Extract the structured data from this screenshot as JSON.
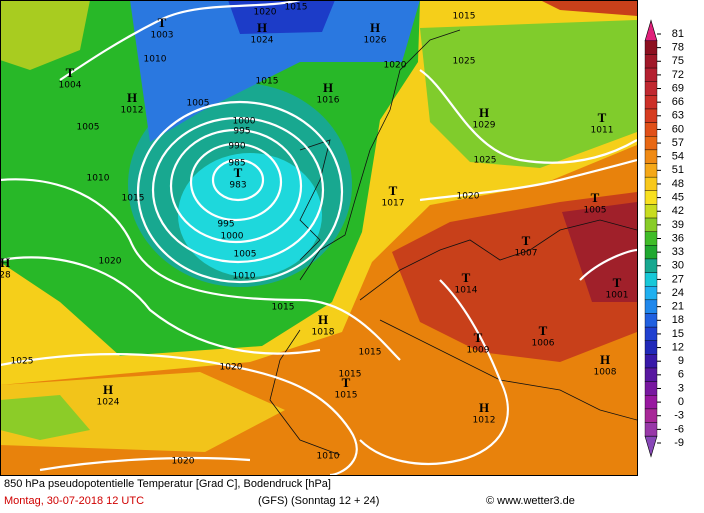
{
  "pressure_centers": [
    {
      "symbol": "T",
      "value": 1003
    },
    {
      "symbol": "H",
      "value": 1024
    },
    {
      "symbol": "H",
      "value": 1026
    },
    {
      "symbol": "T",
      "value": 1004
    },
    {
      "symbol": "H",
      "value": 1012
    },
    {
      "symbol": "H",
      "value": 1016
    },
    {
      "symbol": "H",
      "value": 1029
    },
    {
      "symbol": "T",
      "value": 1011
    },
    {
      "symbol": "T",
      "value": 983
    },
    {
      "symbol": "T",
      "value": 1017
    },
    {
      "symbol": "T",
      "value": 1005
    },
    {
      "symbol": "T",
      "value": 1007
    },
    {
      "symbol": "T",
      "value": 1014
    },
    {
      "symbol": "T",
      "value": 1001
    },
    {
      "symbol": "H",
      "value": 1018
    },
    {
      "symbol": "T",
      "value": 1009
    },
    {
      "symbol": "T",
      "value": 1006
    },
    {
      "symbol": "H",
      "value": 1008
    },
    {
      "symbol": "T",
      "value": 1015
    },
    {
      "symbol": "H",
      "value": 1024
    },
    {
      "symbol": "H",
      "value": 1012
    },
    {
      "symbol": "H",
      "value": 28
    }
  ],
  "isobar_labels": [
    1020,
    1015,
    1015,
    1010,
    1020,
    1025,
    1015,
    1005,
    1000,
    995,
    990,
    985,
    1005,
    1010,
    1015,
    1025,
    1020,
    995,
    1000,
    1005,
    1010,
    1020,
    1015,
    1015,
    1015,
    1025,
    1020,
    1020,
    1010
  ],
  "legend": {
    "ticks": [
      81,
      78,
      75,
      72,
      69,
      66,
      63,
      60,
      57,
      54,
      51,
      48,
      45,
      42,
      39,
      36,
      33,
      30,
      27,
      24,
      21,
      18,
      15,
      12,
      9,
      6,
      3,
      0,
      -3,
      -6,
      -9
    ],
    "colors": [
      "#e0207a",
      "#8c1020",
      "#a01828",
      "#b42030",
      "#c02830",
      "#cc3028",
      "#d63c20",
      "#e05018",
      "#e86814",
      "#f08a14",
      "#f5a818",
      "#f8c81c",
      "#f8e020",
      "#c8dc20",
      "#88cc28",
      "#40bc28",
      "#20a830",
      "#18a890",
      "#18c8d8",
      "#20b0f0",
      "#2088ec",
      "#2060e0",
      "#2040d0",
      "#2028b8",
      "#3818a8",
      "#5818a0",
      "#7818a0",
      "#9818a0",
      "#a82898",
      "#9838a8",
      "#8848b8"
    ]
  },
  "caption": {
    "description": "850 hPa pseudopotentielle Temperatur [Grad C], Bodendruck [hPa]",
    "date": "Montag, 30-07-2018  12 UTC",
    "model": "(GFS)  (Sonntag 12 + 24)",
    "credit": "© www.wetter3.de"
  }
}
